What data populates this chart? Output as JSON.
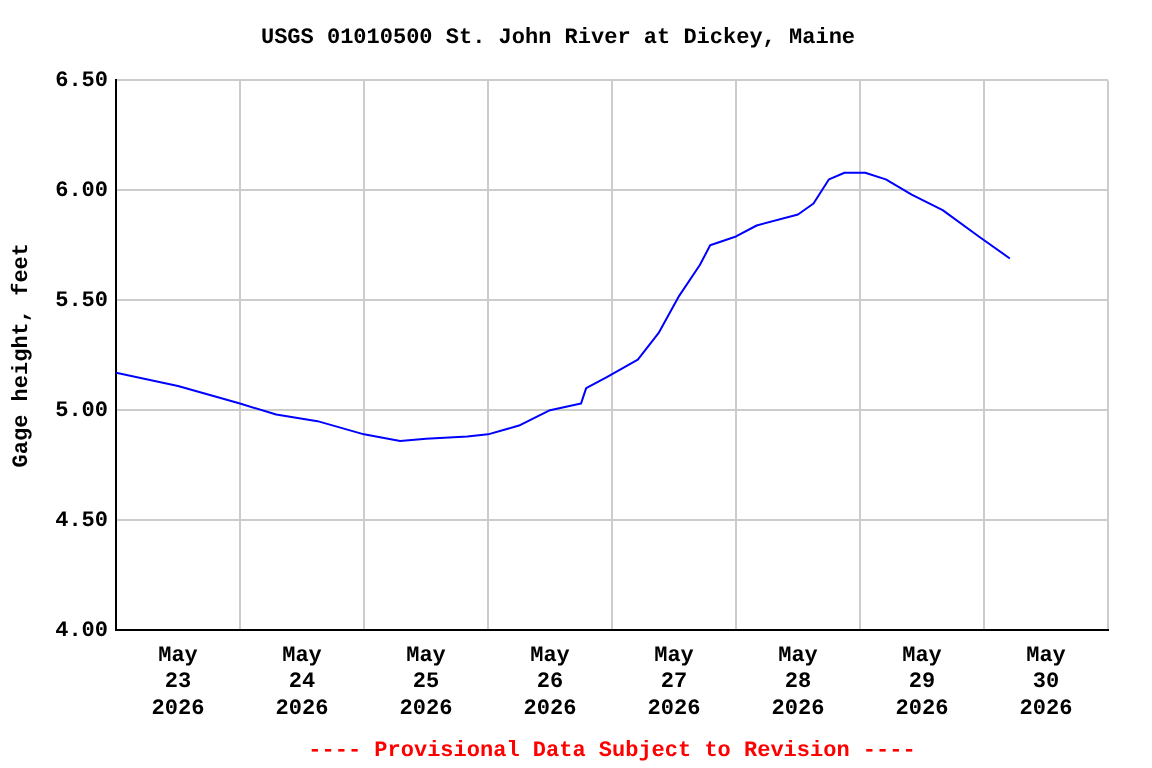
{
  "chart_data": {
    "type": "line",
    "title": "USGS 01010500 St. John River at Dickey, Maine",
    "ylabel": "Gage height, feet",
    "annotations": [
      "---- Provisional Data Subject to Revision ----"
    ],
    "x": [
      "2026-05-23T00:00",
      "2026-05-23T12:00",
      "2026-05-24T00:00",
      "2026-05-24T07:00",
      "2026-05-24T15:00",
      "2026-05-25T00:00",
      "2026-05-25T07:00",
      "2026-05-25T12:00",
      "2026-05-25T20:00",
      "2026-05-26T00:00",
      "2026-05-26T06:00",
      "2026-05-26T12:00",
      "2026-05-26T18:00",
      "2026-05-26T19:00",
      "2026-05-26T23:00",
      "2026-05-27T05:00",
      "2026-05-27T09:00",
      "2026-05-27T13:00",
      "2026-05-27T17:00",
      "2026-05-27T19:00",
      "2026-05-28T00:00",
      "2026-05-28T04:00",
      "2026-05-28T12:00",
      "2026-05-28T15:00",
      "2026-05-28T18:00",
      "2026-05-28T21:00",
      "2026-05-29T01:00",
      "2026-05-29T05:00",
      "2026-05-29T10:00",
      "2026-05-29T16:00",
      "2026-05-29T23:00",
      "2026-05-30T05:00"
    ],
    "series": [
      {
        "color": "#0000ff",
        "values": [
          5.17,
          5.11,
          5.03,
          4.98,
          4.95,
          4.89,
          4.86,
          4.87,
          4.88,
          4.89,
          4.93,
          5.0,
          5.03,
          5.1,
          5.15,
          5.23,
          5.35,
          5.52,
          5.66,
          5.75,
          5.79,
          5.84,
          5.89,
          5.94,
          6.05,
          6.08,
          6.08,
          6.05,
          5.98,
          5.91,
          5.79,
          5.69
        ]
      }
    ],
    "xlim": [
      "2026-05-23T00:00",
      "2026-05-31T00:00"
    ],
    "xticks": [
      {
        "value": "2026-05-23T00:00",
        "label": null
      },
      {
        "value": "2026-05-23T12:00",
        "label": "May 23 2026"
      },
      {
        "value": "2026-05-24T00:00",
        "label": null
      },
      {
        "value": "2026-05-24T12:00",
        "label": "May 24 2026"
      },
      {
        "value": "2026-05-25T00:00",
        "label": null
      },
      {
        "value": "2026-05-25T12:00",
        "label": "May 25 2026"
      },
      {
        "value": "2026-05-26T00:00",
        "label": null
      },
      {
        "value": "2026-05-26T12:00",
        "label": "May 26 2026"
      },
      {
        "value": "2026-05-27T00:00",
        "label": null
      },
      {
        "value": "2026-05-27T12:00",
        "label": "May 27 2026"
      },
      {
        "value": "2026-05-28T00:00",
        "label": null
      },
      {
        "value": "2026-05-28T12:00",
        "label": "May 28 2026"
      },
      {
        "value": "2026-05-29T00:00",
        "label": null
      },
      {
        "value": "2026-05-29T12:00",
        "label": "May 29 2026"
      },
      {
        "value": "2026-05-30T00:00",
        "label": null
      },
      {
        "value": "2026-05-30T12:00",
        "label": "May 30 2026"
      },
      {
        "value": "2026-05-31T00:00",
        "label": null
      }
    ],
    "ylim": [
      4.0,
      6.5
    ],
    "yticks": [
      {
        "value": 4.0,
        "label": "4.00"
      },
      {
        "value": 4.5,
        "label": "4.50"
      },
      {
        "value": 5.0,
        "label": "5.00"
      },
      {
        "value": 5.5,
        "label": "5.50"
      },
      {
        "value": 6.0,
        "label": "6.00"
      },
      {
        "value": 6.5,
        "label": "6.50"
      }
    ],
    "grid": true,
    "legend": false,
    "marker": "none",
    "line_style": "solid"
  }
}
